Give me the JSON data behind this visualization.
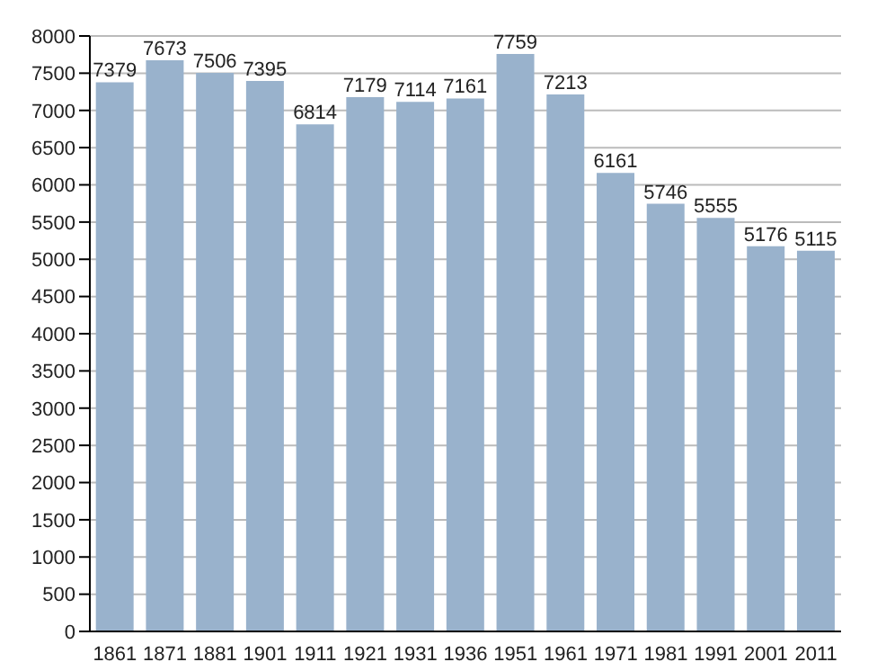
{
  "chart_data": {
    "type": "bar",
    "categories": [
      "1861",
      "1871",
      "1881",
      "1901",
      "1911",
      "1921",
      "1931",
      "1936",
      "1951",
      "1961",
      "1971",
      "1981",
      "1991",
      "2001",
      "2011"
    ],
    "values": [
      7379,
      7673,
      7506,
      7395,
      6814,
      7179,
      7114,
      7161,
      7759,
      7213,
      6161,
      5746,
      5555,
      5176,
      5115
    ],
    "color": "#99b2cc",
    "ylim": [
      0,
      8000
    ],
    "yticks": [
      0,
      500,
      1000,
      1500,
      2000,
      2500,
      3000,
      3500,
      4000,
      4500,
      5000,
      5500,
      6000,
      6500,
      7000,
      7500,
      8000
    ],
    "grid": "y",
    "data_labels": true
  }
}
